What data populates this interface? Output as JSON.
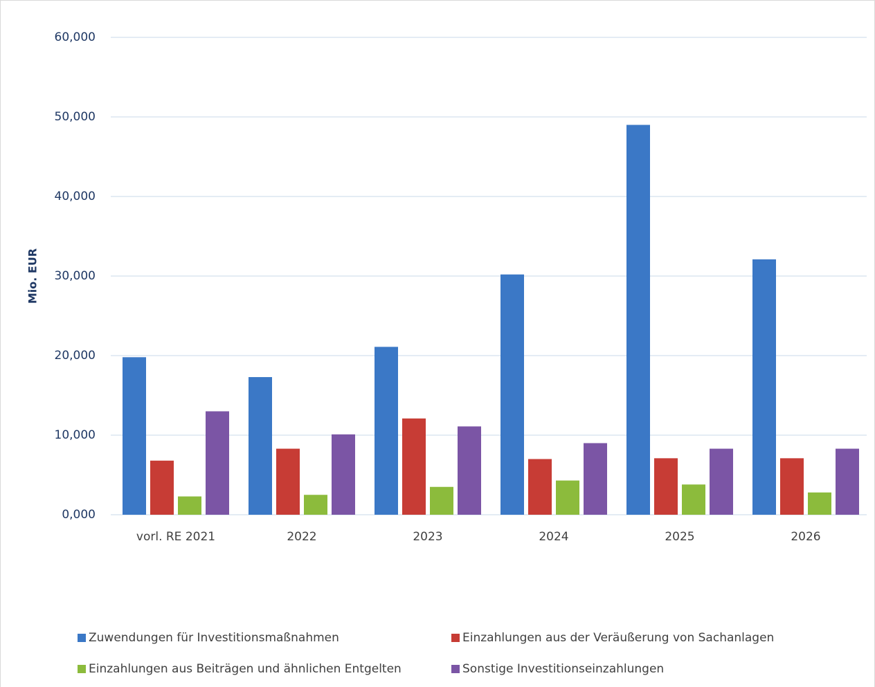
{
  "chart_data": {
    "type": "bar",
    "y_label": "Mio. EUR",
    "categories": [
      "vorl. RE 2021",
      "2022",
      "2023",
      "2024",
      "2025",
      "2026"
    ],
    "series": [
      {
        "name": "Zuwendungen für Investitionsmaßnahmen",
        "color": "#3b78c6",
        "values": [
          19800,
          17300,
          21100,
          30200,
          49000,
          32100
        ]
      },
      {
        "name": "Einzahlungen aus der Veräußerung von Sachanlagen",
        "color": "#c73c35",
        "values": [
          6800,
          8300,
          12100,
          7000,
          7100,
          7100
        ]
      },
      {
        "name": "Einzahlungen aus Beiträgen und ähnlichen Entgelten",
        "color": "#8cbb3c",
        "values": [
          2300,
          2500,
          3500,
          4300,
          3800,
          2800
        ]
      },
      {
        "name": "Sonstige Investitionseinzahlungen",
        "color": "#7b55a5",
        "values": [
          13000,
          10100,
          11100,
          9000,
          8300,
          8300
        ]
      }
    ],
    "ylim": [
      0,
      60000
    ],
    "yticks": [
      {
        "value": 0,
        "label": "0,000"
      },
      {
        "value": 10000,
        "label": "10,000"
      },
      {
        "value": 20000,
        "label": "20,000"
      },
      {
        "value": 30000,
        "label": "30,000"
      },
      {
        "value": 40000,
        "label": "40,000"
      },
      {
        "value": 50000,
        "label": "50,000"
      },
      {
        "value": 60000,
        "label": "60,000"
      }
    ],
    "grid": true
  }
}
